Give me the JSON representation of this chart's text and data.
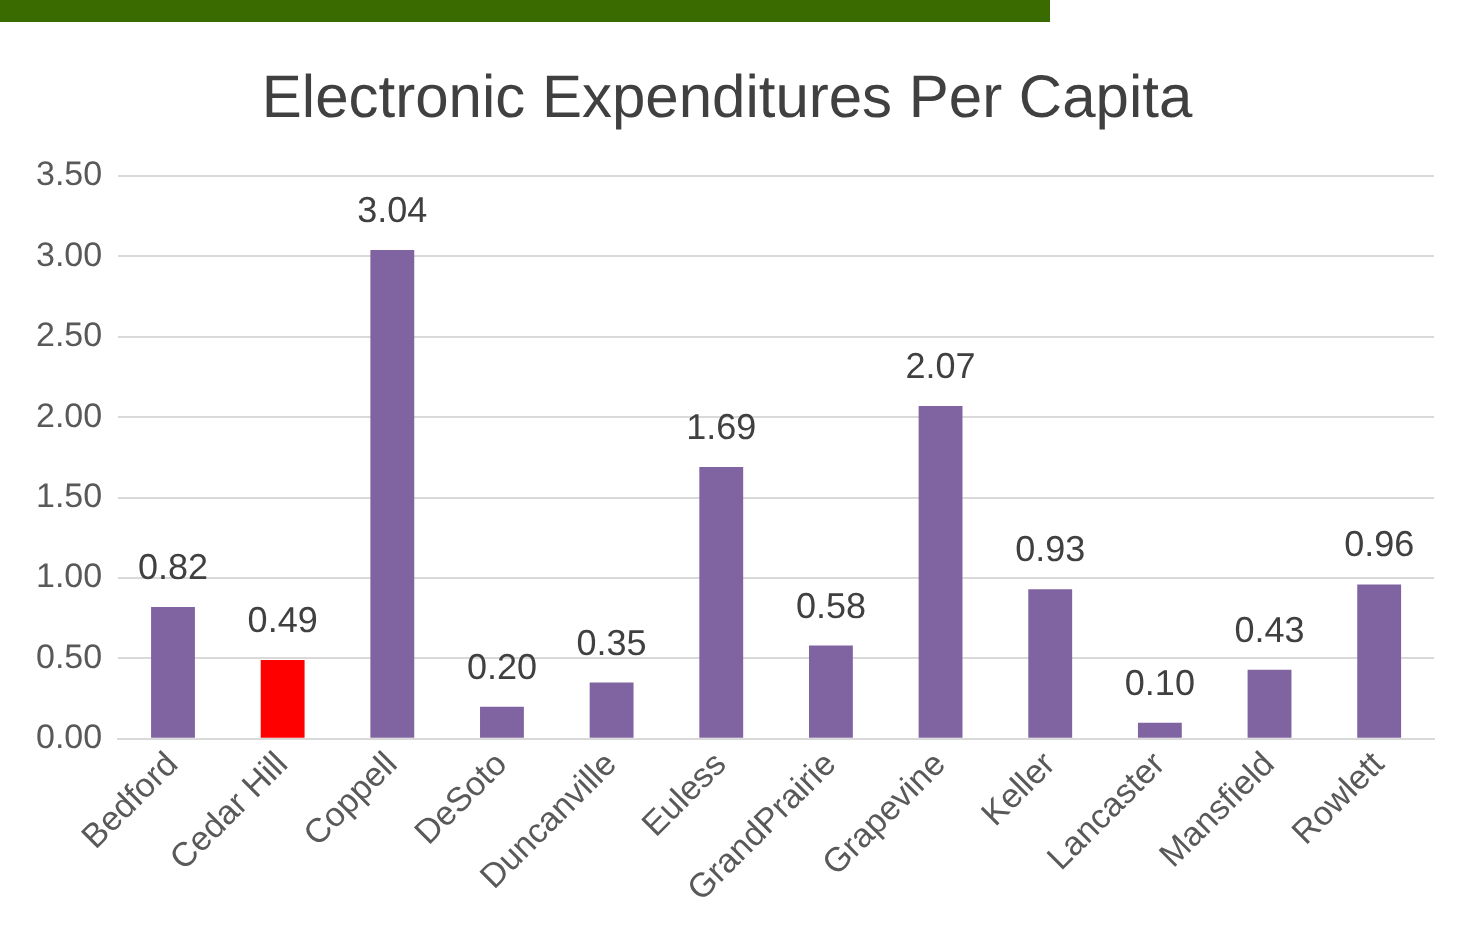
{
  "chart_data": {
    "type": "bar",
    "title": "Electronic Expenditures Per Capita",
    "categories": [
      "Bedford",
      "Cedar Hill",
      "Coppell",
      "DeSoto",
      "Duncanville",
      "Euless",
      "GrandPrairie",
      "Grapevine",
      "Keller",
      "Lancaster",
      "Mansfield",
      "Rowlett"
    ],
    "values": [
      0.82,
      0.49,
      3.04,
      0.2,
      0.35,
      1.69,
      0.58,
      2.07,
      0.93,
      0.1,
      0.43,
      0.96
    ],
    "value_labels": [
      "0.82",
      "0.49",
      "3.04",
      "0.20",
      "0.35",
      "1.69",
      "0.58",
      "2.07",
      "0.93",
      "0.10",
      "0.43",
      "0.96"
    ],
    "colors": [
      "#8064a2",
      "#ff0000",
      "#8064a2",
      "#8064a2",
      "#8064a2",
      "#8064a2",
      "#8064a2",
      "#8064a2",
      "#8064a2",
      "#8064a2",
      "#8064a2",
      "#8064a2"
    ],
    "ylim": [
      0,
      3.5
    ],
    "yticks": [
      {
        "value": 0,
        "label": "0.00"
      },
      {
        "value": 0.5,
        "label": "0.50"
      },
      {
        "value": 1,
        "label": "1.00"
      },
      {
        "value": 1.5,
        "label": "1.50"
      },
      {
        "value": 2,
        "label": "2.00"
      },
      {
        "value": 2.5,
        "label": "2.50"
      },
      {
        "value": 3,
        "label": "3.00"
      },
      {
        "value": 3.5,
        "label": "3.50"
      }
    ],
    "grid": "y",
    "legend": false
  }
}
